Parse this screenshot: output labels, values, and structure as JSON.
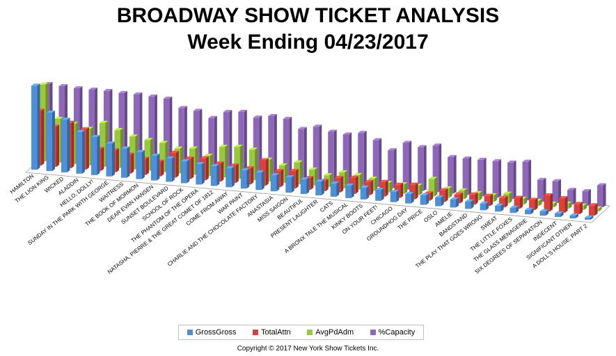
{
  "title": "BROADWAY SHOW TICKET ANALYSIS",
  "subtitle": "Week Ending 04/23/2017",
  "copyright": "Copyright © 2017 New York Show Tickets Inc.",
  "colors": {
    "GrossGross": "#4f8fd6",
    "TotalAttn": "#d9413b",
    "AvgPdAdm": "#9bc63f",
    "%Capacity": "#8e67b8"
  },
  "chart_data": {
    "type": "bar",
    "title": "BROADWAY SHOW TICKET ANALYSIS",
    "subtitle": "Week Ending 04/23/2017",
    "categories": [
      "HAMILTON",
      "THE LION KING",
      "WICKED",
      "ALADDIN",
      "HELLO, DOLLY!",
      "SUNDAY IN THE PARK WITH GEORGE",
      "WAITRESS",
      "THE BOOK OF MORMON",
      "DEAR EVAN HANSEN",
      "SUNSET BOULEVARD",
      "SCHOOL OF ROCK",
      "THE PHANTOM OF THE OPERA",
      "NATASHA, PIERRE & THE GREAT COMET OF 1812",
      "COME FROM AWAY",
      "WAR PAINT",
      "CHARLIE AND THE CHOCOLATE FACTORY",
      "ANASTASIA",
      "MISS SAIGON",
      "BEAUTIFUL",
      "PRESENT LAUGHTER",
      "CATS",
      "A BRONX TALE THE MUSICAL",
      "KINKY BOOTS",
      "ON YOUR FEET!",
      "CHICAGO",
      "GROUNDHOG DAY",
      "THE PRICE",
      "OSLO",
      "AMÉLIE",
      "BANDSTAND",
      "THE PLAY THAT GOES WRONG",
      "SWEAT",
      "THE LITTLE FOXES",
      "THE GLASS MENAGERIE",
      "SIX DEGREES OF SEPARATION",
      "INDECENT",
      "SIGNIFICANT OTHER",
      "A DOLL'S HOUSE, PART 2"
    ],
    "series": [
      {
        "name": "GrossGross",
        "values": [
          115,
          80,
          72,
          57,
          52,
          45,
          40,
          37,
          34,
          32,
          30,
          28,
          27,
          26,
          25,
          24,
          22,
          21,
          20,
          19,
          18,
          17,
          16,
          15,
          14,
          13,
          13,
          12,
          11,
          10,
          9,
          8,
          7,
          6,
          6,
          5,
          4,
          3
        ]
      },
      {
        "name": "TotalAttn",
        "values": [
          75,
          55,
          62,
          55,
          30,
          30,
          26,
          22,
          20,
          34,
          28,
          30,
          25,
          24,
          22,
          35,
          22,
          24,
          16,
          14,
          20,
          22,
          18,
          20,
          18,
          20,
          10,
          16,
          12,
          14,
          14,
          13,
          15,
          14,
          22,
          20,
          14,
          14
        ]
      },
      {
        "name": "AvgPdAdm",
        "values": [
          105,
          60,
          55,
          50,
          60,
          52,
          45,
          42,
          40,
          34,
          36,
          28,
          42,
          44,
          42,
          30,
          24,
          30,
          22,
          16,
          22,
          20,
          17,
          13,
          13,
          13,
          24,
          13,
          12,
          10,
          9,
          13,
          8,
          7,
          5,
          7,
          6,
          4
        ]
      },
      {
        "name": "%Capacity",
        "values": [
          100,
          99,
          98,
          98,
          98,
          97,
          97,
          96,
          95,
          84,
          82,
          74,
          84,
          86,
          80,
          84,
          82,
          70,
          75,
          70,
          68,
          72,
          64,
          52,
          64,
          60,
          64,
          50,
          50,
          50,
          50,
          50,
          53,
          30,
          30,
          20,
          20,
          30
        ]
      }
    ]
  },
  "legend": {
    "items": [
      {
        "label": "GrossGross"
      },
      {
        "label": "TotalAttn"
      },
      {
        "label": "AvgPdAdm"
      },
      {
        "label": "%Capacity"
      }
    ]
  }
}
